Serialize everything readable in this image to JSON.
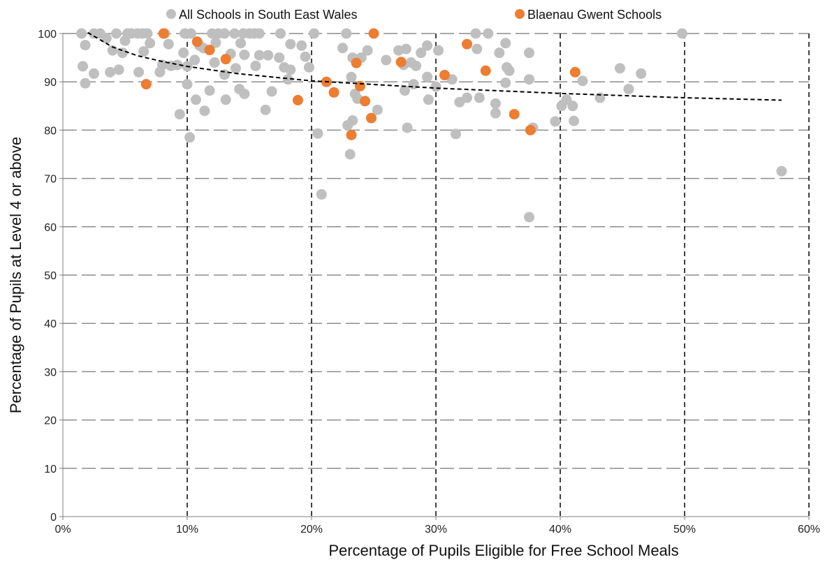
{
  "chart_data": {
    "type": "scatter",
    "xlabel": "Percentage of Pupils Eligible for Free School Meals",
    "ylabel": "Percentage of Pupils at Level 4 or above",
    "xlim": [
      0,
      60
    ],
    "ylim": [
      0,
      100
    ],
    "x_ticks": [
      "0%",
      "10%",
      "20%",
      "30%",
      "40%",
      "50%",
      "60%"
    ],
    "y_ticks": [
      "0",
      "10",
      "20",
      "30",
      "40",
      "50",
      "60",
      "70",
      "80",
      "90",
      "100"
    ],
    "x_tick_values": [
      0,
      10,
      20,
      30,
      40,
      50,
      60
    ],
    "y_tick_values": [
      0,
      10,
      20,
      30,
      40,
      50,
      60,
      70,
      80,
      90,
      100
    ],
    "grid": {
      "horizontal": "dashed gray",
      "vertical": "dashed black"
    },
    "legend_position": "top",
    "trendline": {
      "type": "logarithmic",
      "style": "dashed",
      "color": "#000000",
      "points": [
        [
          2,
          100.2
        ],
        [
          4,
          97.2
        ],
        [
          6,
          95.4
        ],
        [
          8,
          94.2
        ],
        [
          10,
          93.2
        ],
        [
          14,
          91.7
        ],
        [
          20,
          90.2
        ],
        [
          30,
          88.7
        ],
        [
          40,
          87.6
        ],
        [
          50,
          86.7
        ],
        [
          57.8,
          86.2
        ]
      ]
    },
    "series": [
      {
        "name": "All Schools in South East Wales",
        "color": "#bfbfbf",
        "points": [
          [
            1.5,
            100
          ],
          [
            2.5,
            100
          ],
          [
            3,
            100
          ],
          [
            4.3,
            100
          ],
          [
            5.2,
            100
          ],
          [
            5.5,
            100
          ],
          [
            6,
            100
          ],
          [
            6.4,
            100
          ],
          [
            6.8,
            100
          ],
          [
            8.2,
            100
          ],
          [
            9.8,
            100
          ],
          [
            10.3,
            100
          ],
          [
            12,
            100
          ],
          [
            12.5,
            100
          ],
          [
            13,
            100
          ],
          [
            13.8,
            100
          ],
          [
            14.5,
            100
          ],
          [
            15,
            100
          ],
          [
            15.4,
            100
          ],
          [
            15.8,
            100
          ],
          [
            17.5,
            100
          ],
          [
            20.2,
            100
          ],
          [
            22.8,
            100
          ],
          [
            33.2,
            100
          ],
          [
            34.2,
            100
          ],
          [
            49.8,
            100
          ],
          [
            3.5,
            99
          ],
          [
            5,
            98.5
          ],
          [
            7,
            98
          ],
          [
            8.5,
            97.8
          ],
          [
            11,
            97.5
          ],
          [
            14.3,
            98
          ],
          [
            18.3,
            97.8
          ],
          [
            19.2,
            97.5
          ],
          [
            29.3,
            97.5
          ],
          [
            35.6,
            98
          ],
          [
            1.8,
            97.6
          ],
          [
            12.3,
            98.1
          ],
          [
            4,
            96.5
          ],
          [
            4.8,
            96
          ],
          [
            6.5,
            96.3
          ],
          [
            9.7,
            96
          ],
          [
            11.3,
            97
          ],
          [
            13.5,
            95.8
          ],
          [
            14.6,
            95.6
          ],
          [
            15.8,
            95.5
          ],
          [
            16.5,
            95.5
          ],
          [
            17.4,
            95
          ],
          [
            19.5,
            95.2
          ],
          [
            22.5,
            97
          ],
          [
            23.3,
            95
          ],
          [
            24,
            95
          ],
          [
            24.5,
            96.5
          ],
          [
            26,
            94.5
          ],
          [
            27,
            96.5
          ],
          [
            27.6,
            96.8
          ],
          [
            28.8,
            96
          ],
          [
            30.2,
            96.5
          ],
          [
            33.3,
            96.8
          ],
          [
            35.1,
            96
          ],
          [
            37.5,
            96
          ],
          [
            44.8,
            92.8
          ],
          [
            46.5,
            91.7
          ],
          [
            2.5,
            91.7
          ],
          [
            3.8,
            92
          ],
          [
            4.5,
            92.5
          ],
          [
            6.1,
            92
          ],
          [
            7.8,
            92
          ],
          [
            8,
            93.5
          ],
          [
            8.7,
            93.3
          ],
          [
            9.2,
            93.5
          ],
          [
            10,
            93.2
          ],
          [
            10.6,
            94.5
          ],
          [
            12.2,
            94
          ],
          [
            13,
            91.5
          ],
          [
            13.9,
            92.8
          ],
          [
            15.5,
            93.3
          ],
          [
            17.8,
            93
          ],
          [
            18.3,
            92.5
          ],
          [
            19.8,
            93
          ],
          [
            23.2,
            91
          ],
          [
            27.4,
            93.5
          ],
          [
            28,
            94
          ],
          [
            28.4,
            93.3
          ],
          [
            29.3,
            91
          ],
          [
            31.3,
            90.5
          ],
          [
            35.7,
            93
          ],
          [
            35.9,
            92.3
          ],
          [
            1.6,
            93.2
          ],
          [
            1.8,
            89.7
          ],
          [
            10,
            89.5
          ],
          [
            11.8,
            88.2
          ],
          [
            14.2,
            88.5
          ],
          [
            14.6,
            87.5
          ],
          [
            16.8,
            88
          ],
          [
            23.5,
            87.5
          ],
          [
            23.7,
            86.5
          ],
          [
            27.5,
            88.2
          ],
          [
            28.2,
            89.5
          ],
          [
            29.4,
            86.3
          ],
          [
            30,
            89
          ],
          [
            32.5,
            86.7
          ],
          [
            33.5,
            86.7
          ],
          [
            34.8,
            85.5
          ],
          [
            35.6,
            89.8
          ],
          [
            37.5,
            90.5
          ],
          [
            40.5,
            86.3
          ],
          [
            41.8,
            90.2
          ],
          [
            43.2,
            86.7
          ],
          [
            45.5,
            88.5
          ],
          [
            13.1,
            86.3
          ],
          [
            10.7,
            86.3
          ],
          [
            9.4,
            83.3
          ],
          [
            11.4,
            84
          ],
          [
            16.3,
            84.2
          ],
          [
            18.1,
            90.5
          ],
          [
            20.5,
            79.3
          ],
          [
            22.9,
            81
          ],
          [
            23.3,
            82
          ],
          [
            25.3,
            84.2
          ],
          [
            27.7,
            80.5
          ],
          [
            31.6,
            79.2
          ],
          [
            31.9,
            85.8
          ],
          [
            34.8,
            83.5
          ],
          [
            37.8,
            80.5
          ],
          [
            39.6,
            81.8
          ],
          [
            40.1,
            85
          ],
          [
            41,
            85
          ],
          [
            41.1,
            81.9
          ],
          [
            10.2,
            78.5
          ],
          [
            20.8,
            66.7
          ],
          [
            23.1,
            75
          ],
          [
            37.5,
            62
          ],
          [
            57.8,
            71.5
          ]
        ]
      },
      {
        "name": "Blaenau Gwent Schools",
        "color": "#ed7d31",
        "points": [
          [
            8.1,
            100
          ],
          [
            10.8,
            98.3
          ],
          [
            11.8,
            96.6
          ],
          [
            13.1,
            94.7
          ],
          [
            6.7,
            89.5
          ],
          [
            18.9,
            86.2
          ],
          [
            21.2,
            90
          ],
          [
            21.8,
            87.8
          ],
          [
            23.6,
            93.9
          ],
          [
            23.9,
            89.1
          ],
          [
            24.3,
            86
          ],
          [
            25,
            100
          ],
          [
            24.8,
            82.5
          ],
          [
            23.2,
            79
          ],
          [
            27.2,
            94.1
          ],
          [
            30.7,
            91.4
          ],
          [
            32.5,
            97.8
          ],
          [
            34,
            92.3
          ],
          [
            36.3,
            83.3
          ],
          [
            37.6,
            80
          ],
          [
            41.2,
            92
          ]
        ]
      }
    ]
  }
}
